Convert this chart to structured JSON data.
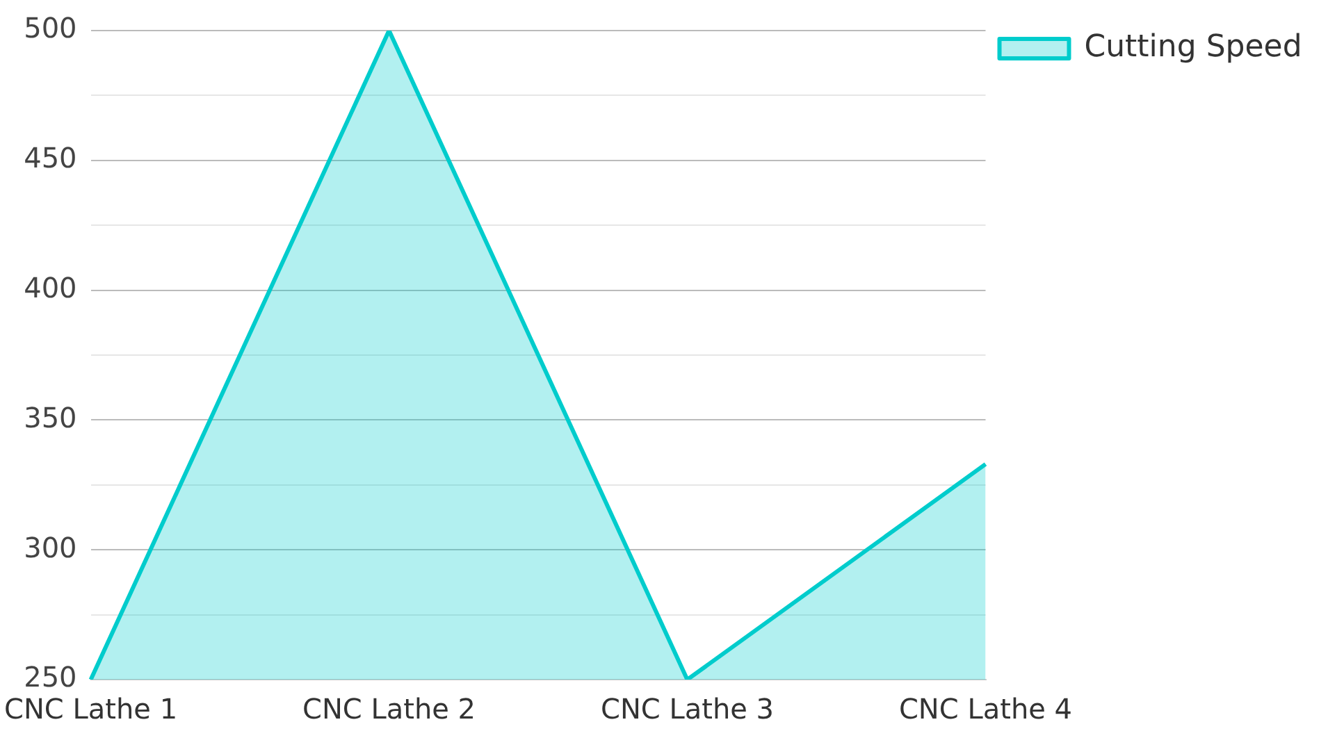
{
  "chart_data": {
    "type": "area",
    "categories": [
      "CNC Lathe 1",
      "CNC Lathe 2",
      "CNC Lathe 3",
      "CNC Lathe 4"
    ],
    "series": [
      {
        "name": "Cutting Speed",
        "color": "#00cccc",
        "values": [
          250,
          500,
          250,
          333
        ]
      }
    ],
    "ylim": [
      250,
      500
    ],
    "yticks": [
      250,
      {
        "value": 275,
        "label": null
      },
      300,
      {
        "value": 325,
        "label": null
      },
      350,
      {
        "value": 375,
        "label": null
      },
      400,
      {
        "value": 425,
        "label": null
      },
      450,
      {
        "value": 475,
        "label": null
      },
      500
    ],
    "grid": "y",
    "legend": "top right",
    "marker": "none"
  }
}
